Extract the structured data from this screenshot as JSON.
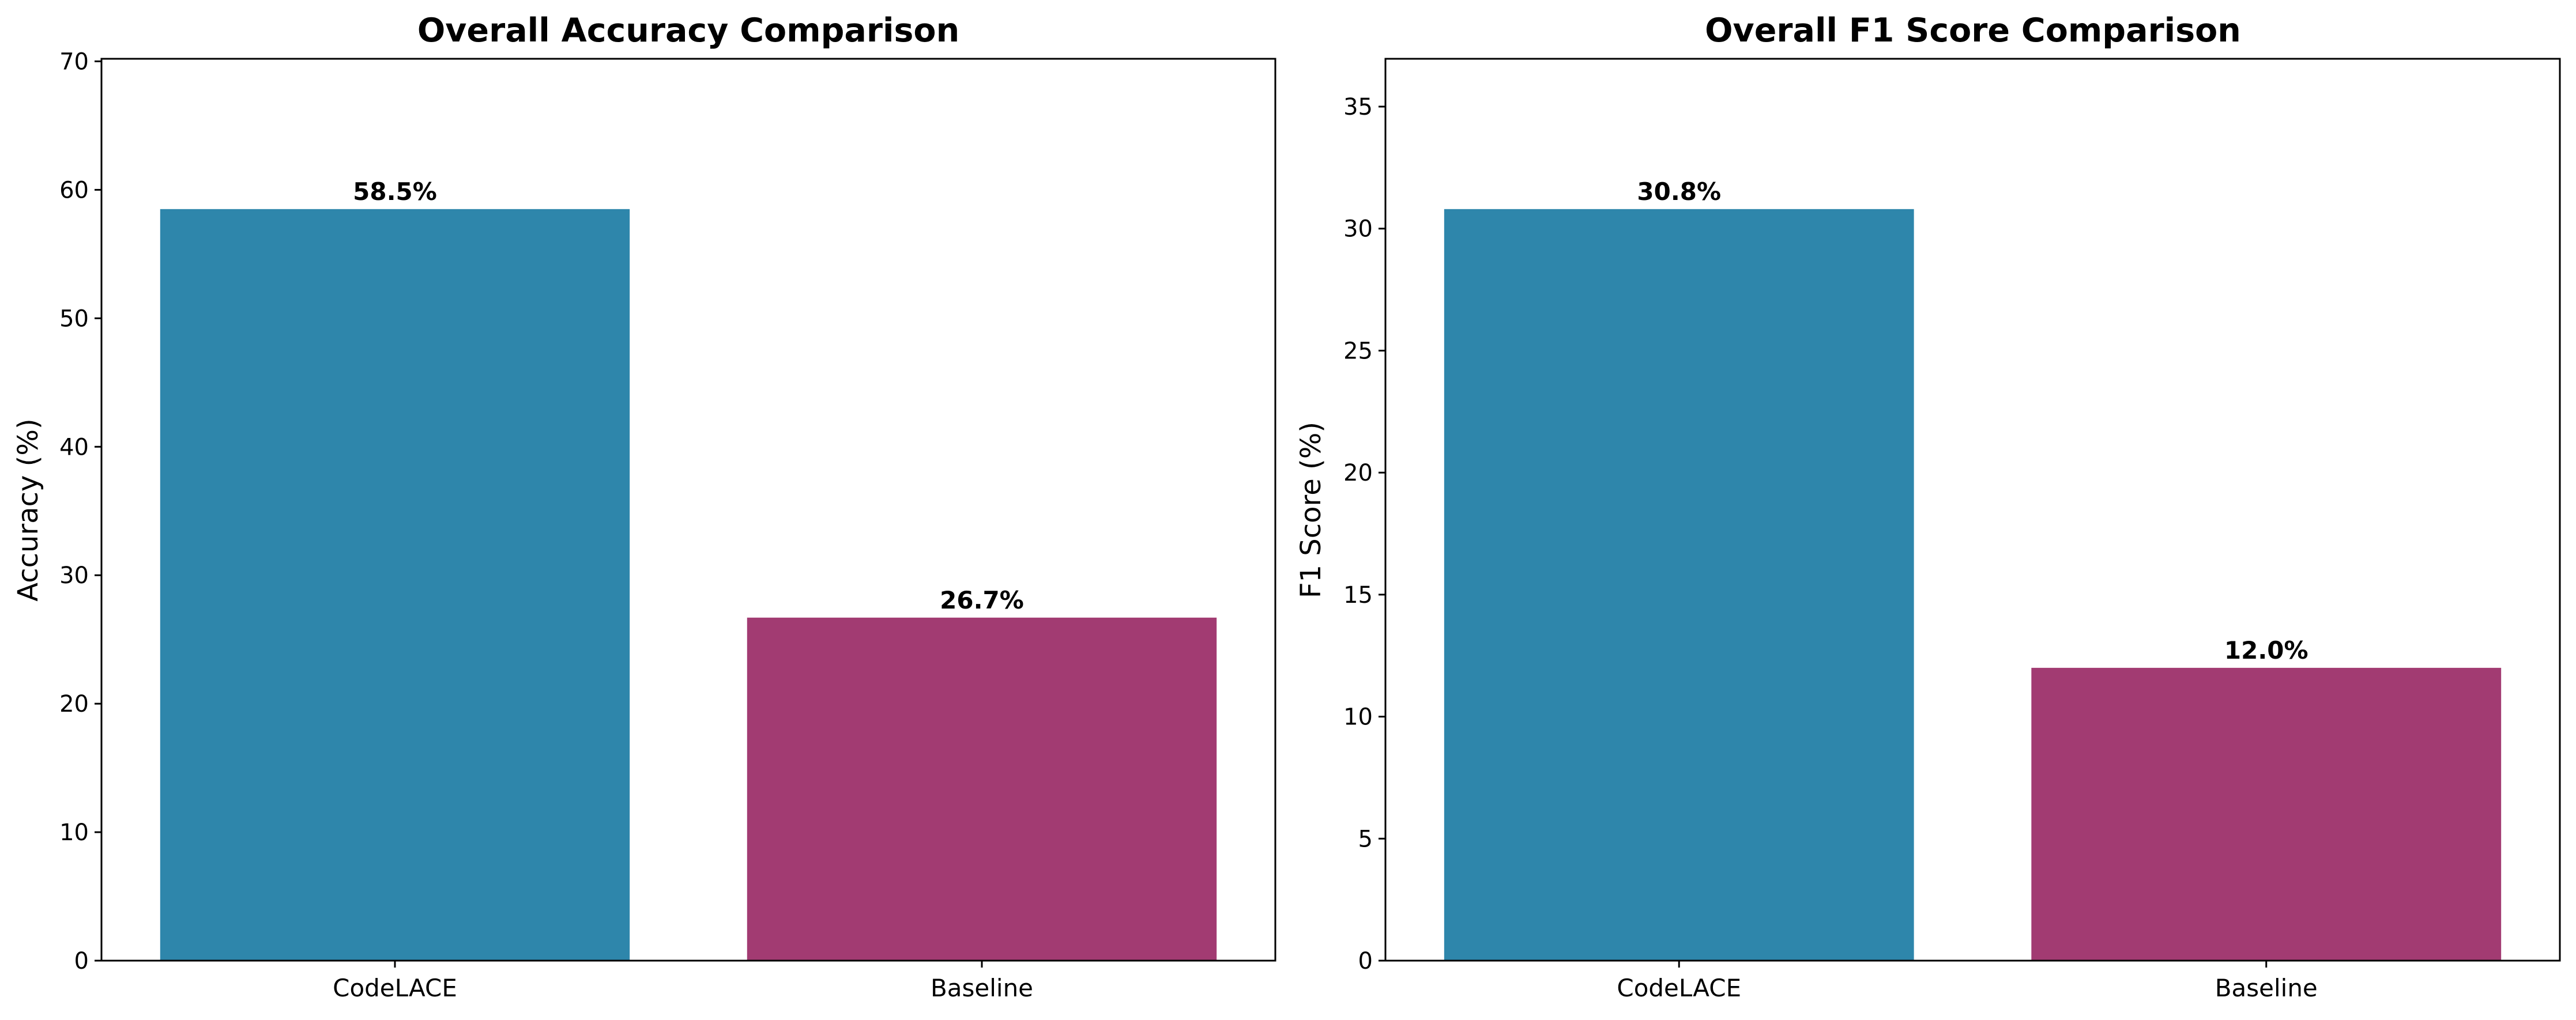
{
  "chart_data": [
    {
      "type": "bar",
      "title": "Overall Accuracy Comparison",
      "xlabel": "",
      "ylabel": "Accuracy (%)",
      "categories": [
        "CodeLACE",
        "Baseline"
      ],
      "values": [
        58.5,
        26.7
      ],
      "value_labels": [
        "58.5%",
        "26.7%"
      ],
      "colors": [
        "#2E86AB",
        "#A23B72"
      ],
      "ylim": [
        0,
        70.2
      ],
      "yticks": [
        0,
        10,
        20,
        30,
        40,
        50,
        60,
        70
      ],
      "grid": false,
      "legend": "none"
    },
    {
      "type": "bar",
      "title": "Overall F1 Score Comparison",
      "xlabel": "",
      "ylabel": "F1 Score (%)",
      "categories": [
        "CodeLACE",
        "Baseline"
      ],
      "values": [
        30.8,
        12.0
      ],
      "value_labels": [
        "30.8%",
        "12.0%"
      ],
      "colors": [
        "#2E86AB",
        "#A23B72"
      ],
      "ylim": [
        0,
        36.96
      ],
      "yticks": [
        0,
        5,
        10,
        15,
        20,
        25,
        30,
        35
      ],
      "grid": false,
      "legend": "none"
    }
  ]
}
